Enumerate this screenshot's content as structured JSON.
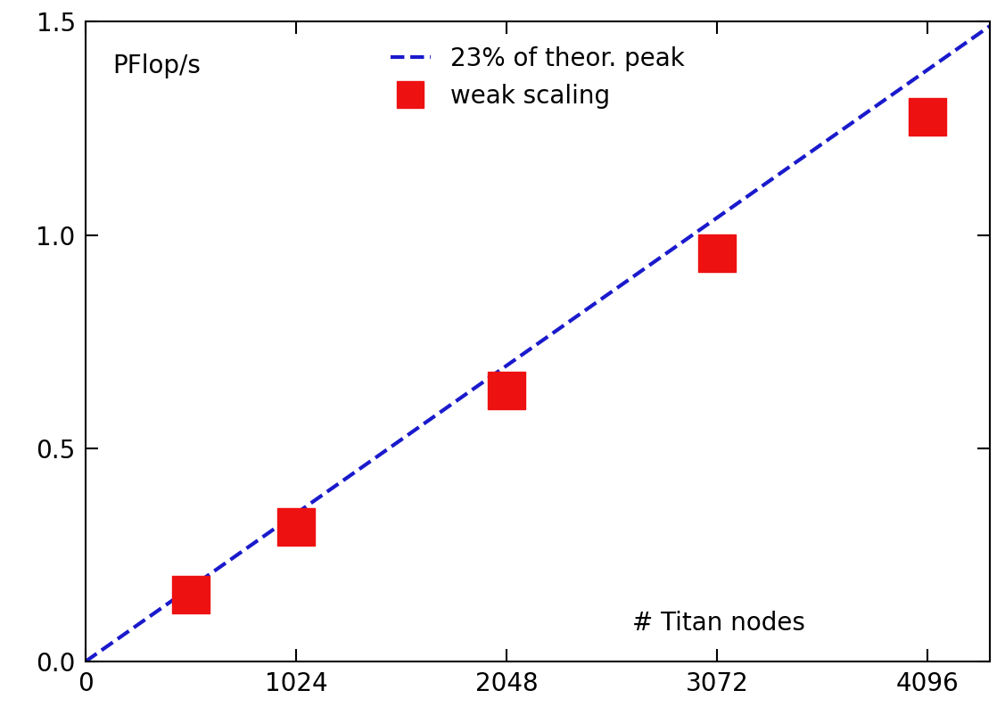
{
  "chart_data": {
    "type": "scatter",
    "y_label": "PFlop/s",
    "x_label": "# Titan nodes",
    "series": [
      {
        "name": "23% of theor. peak",
        "type": "line",
        "color": "#1a1acc",
        "line_style": "dashed",
        "x": [
          0,
          4400
        ],
        "values": [
          0,
          1.49
        ]
      },
      {
        "name": "weak scaling",
        "type": "scatter",
        "color": "#ee1111",
        "marker": "square",
        "x": [
          512,
          1024,
          2048,
          3072,
          4096
        ],
        "values": [
          0.156,
          0.316,
          0.635,
          0.957,
          1.277
        ]
      }
    ],
    "xlim": [
      0,
      4400
    ],
    "xticks": [
      0,
      1024,
      2048,
      3072,
      4096
    ],
    "ylim": [
      0,
      1.5
    ],
    "yticks": [
      {
        "value": 0,
        "label": "0.0"
      },
      {
        "value": 0.5,
        "label": "0.5"
      },
      {
        "value": 1.0,
        "label": "1.0"
      },
      {
        "value": 1.5,
        "label": "1.5"
      }
    ],
    "legend": "upper center",
    "grid": false
  }
}
